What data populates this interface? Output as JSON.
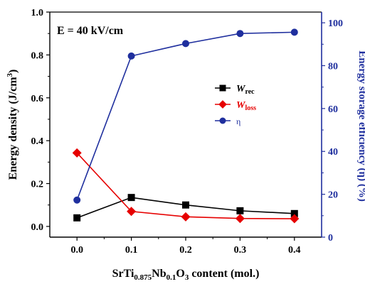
{
  "chart_data": {
    "type": "line",
    "annotation": "E = 40 kV/cm",
    "x": [
      0.0,
      0.1,
      0.2,
      0.3,
      0.4
    ],
    "xticks": [
      "0.0",
      "0.1",
      "0.2",
      "0.3",
      "0.4"
    ],
    "xlim": [
      -0.05,
      0.45
    ],
    "xlabel": {
      "parts": [
        {
          "text": "SrTi",
          "sub": false
        },
        {
          "text": "0.875",
          "sub": true
        },
        {
          "text": "Nb",
          "sub": false
        },
        {
          "text": "0.1",
          "sub": true
        },
        {
          "text": "O",
          "sub": false
        },
        {
          "text": "3",
          "sub": true
        },
        {
          "text": " content (mol.)",
          "sub": false
        }
      ]
    },
    "left_axis": {
      "ylim": [
        -0.05,
        1.0
      ],
      "ticks": [
        "0.0",
        "0.2",
        "0.4",
        "0.6",
        "0.8",
        "1.0"
      ],
      "label": {
        "parts": [
          {
            "text": "Energy density (J/cm",
            "sup": false
          },
          {
            "text": "3",
            "sup": true
          },
          {
            "text": ")",
            "sup": false
          }
        ]
      },
      "color": "#000000"
    },
    "right_axis": {
      "ylim": [
        0,
        105
      ],
      "ticks": [
        "0",
        "20",
        "40",
        "60",
        "80",
        "100"
      ],
      "label": "Energy storage efficiency (η) (%)",
      "color": "#1f2f9e"
    },
    "series": [
      {
        "name": "W",
        "sub": "rec",
        "axis": "left",
        "marker": "square",
        "color": "#000000",
        "values": [
          0.04,
          0.135,
          0.1,
          0.073,
          0.06
        ]
      },
      {
        "name": "W",
        "sub": "loss",
        "axis": "left",
        "marker": "diamond",
        "color": "#e60000",
        "values": [
          0.343,
          0.07,
          0.045,
          0.037,
          0.036
        ]
      },
      {
        "name": "η",
        "sub": "",
        "axis": "right",
        "marker": "circle",
        "color": "#1f2f9e",
        "values": [
          17.3,
          84.5,
          90.3,
          95.0,
          95.6
        ]
      }
    ],
    "legend_position": "center-right",
    "grid": false
  }
}
